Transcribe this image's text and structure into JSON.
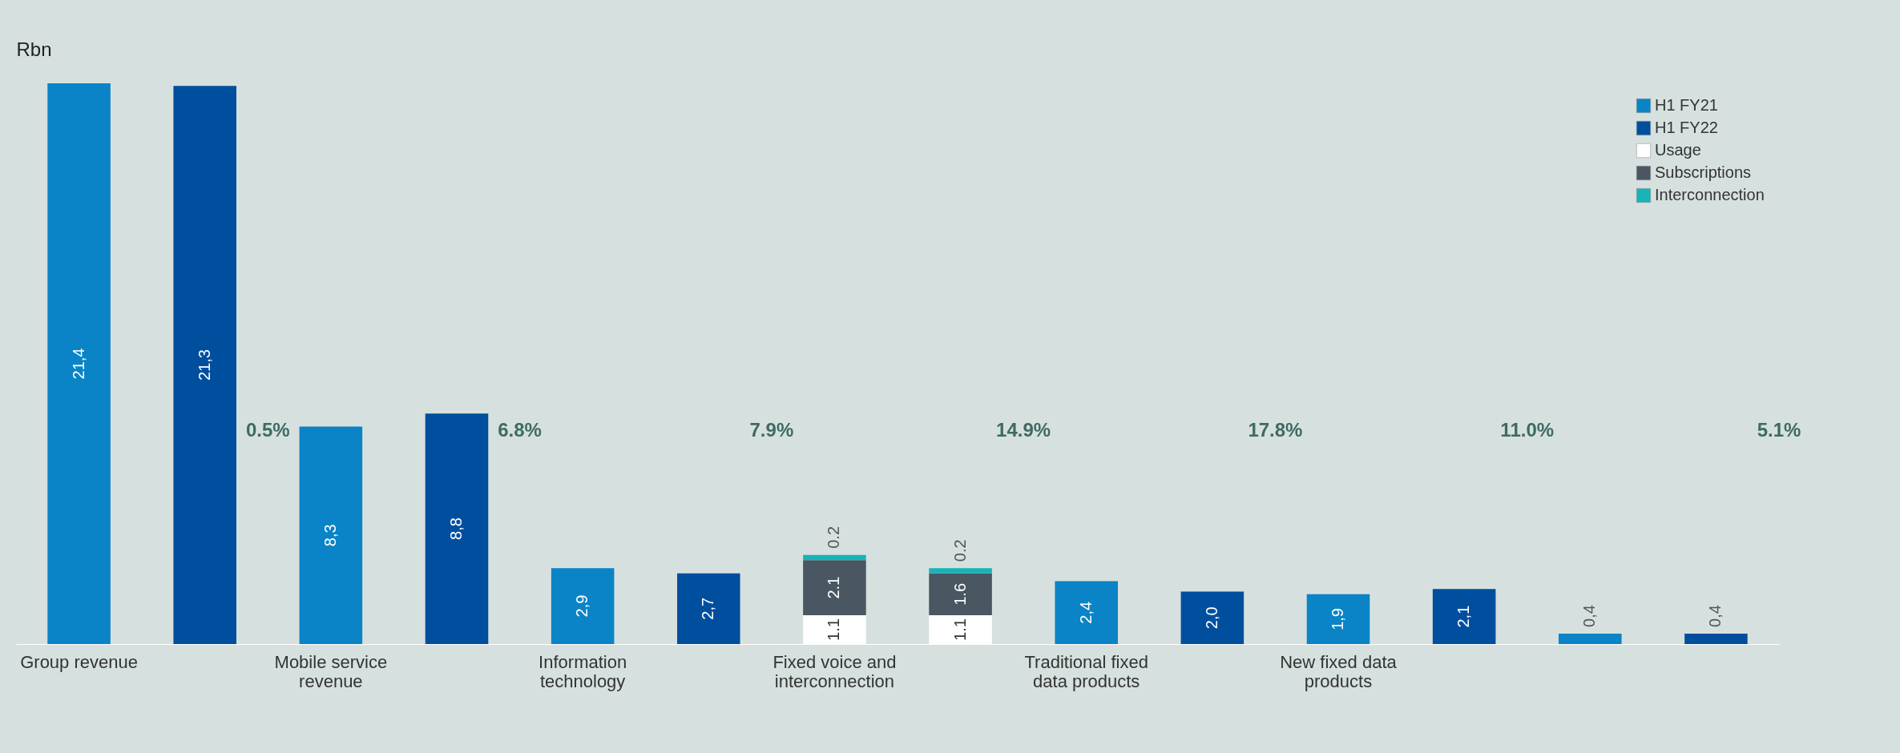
{
  "chart_data": {
    "type": "bar",
    "ylabel": "Rbn",
    "stacked": true,
    "legend": "top right",
    "categories": [
      "Group revenue",
      null,
      "Mobile service revenue",
      null,
      "Information technology",
      null,
      "Fixed voice and interconnection",
      null,
      "Traditional fixed data products",
      null,
      "New fixed data products",
      null,
      null,
      null
    ],
    "series": [
      {
        "name": "H1 FY21",
        "color": "#0a84c6",
        "values": [
          21.4,
          null,
          8.3,
          null,
          2.9,
          null,
          null,
          null,
          2.4,
          null,
          1.9,
          null,
          0.4,
          null
        ],
        "value_labels": [
          "21,4",
          null,
          "8,3",
          null,
          "2,9",
          null,
          null,
          null,
          "2,4",
          null,
          "1,9",
          null,
          "0,4",
          null
        ]
      },
      {
        "name": "H1 FY22",
        "color": "#004f9f",
        "values": [
          null,
          21.3,
          null,
          8.8,
          null,
          2.7,
          null,
          null,
          null,
          2.0,
          null,
          2.1,
          null,
          0.4
        ],
        "value_labels": [
          null,
          "21,3",
          null,
          "8,8",
          null,
          "2,7",
          null,
          null,
          null,
          "2,0",
          null,
          "2,1",
          null,
          "0,4"
        ]
      },
      {
        "name": "Usage",
        "color": "#ffffff",
        "values": [
          null,
          null,
          null,
          null,
          null,
          null,
          1.1,
          1.1,
          null,
          null,
          null,
          null,
          null,
          null
        ],
        "value_labels": [
          null,
          null,
          null,
          null,
          null,
          null,
          "1.1",
          "1.1",
          null,
          null,
          null,
          null,
          null,
          null
        ]
      },
      {
        "name": "Subscriptions",
        "color": "#4b5663",
        "values": [
          null,
          null,
          null,
          null,
          null,
          null,
          2.1,
          1.6,
          null,
          null,
          null,
          null,
          null,
          null
        ],
        "value_labels": [
          null,
          null,
          null,
          null,
          null,
          null,
          "2.1",
          "1.6",
          null,
          null,
          null,
          null,
          null,
          null
        ]
      },
      {
        "name": "Interconnection",
        "color": "#19b3b8",
        "values": [
          null,
          null,
          null,
          null,
          null,
          null,
          0.2,
          0.2,
          null,
          null,
          null,
          null,
          null,
          null
        ],
        "value_labels": [
          null,
          null,
          null,
          null,
          null,
          null,
          "0.2",
          "0.2",
          null,
          null,
          null,
          null,
          null,
          null
        ]
      }
    ],
    "annotations": [
      "0.5%",
      "6.8%",
      "7.9%",
      "14.9%",
      "17.8%",
      "11.0%",
      "5.1%"
    ]
  }
}
